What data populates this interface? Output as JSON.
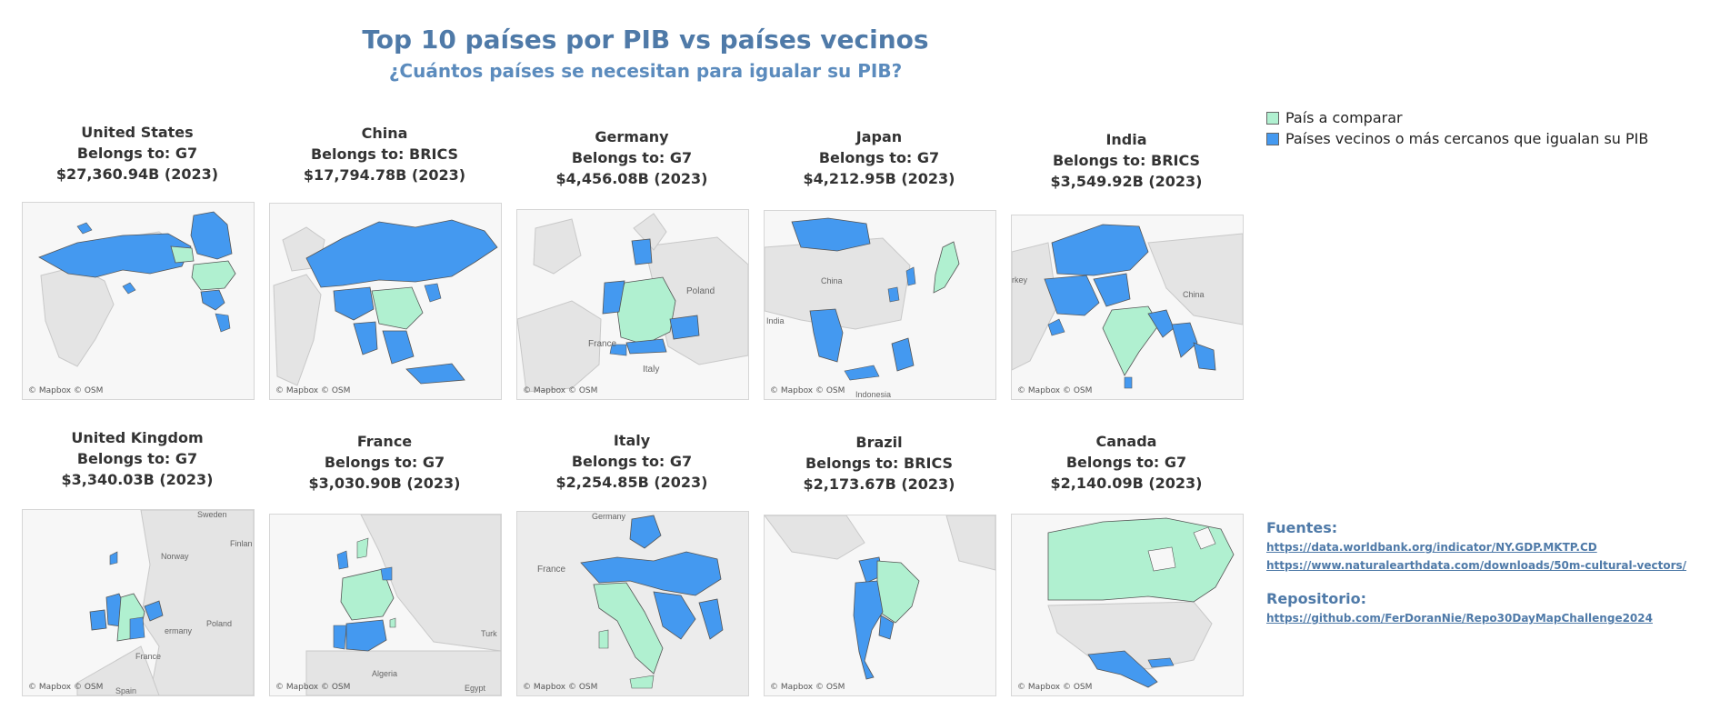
{
  "title": "Top 10 países por PIB vs países vecinos",
  "subtitle": "¿Cuántos países se necesitan para igualar su PIB?",
  "colors": {
    "compare": "#b0f0d0",
    "neighbors": "#4499f0",
    "land": "#e6e6e6",
    "water": "#f7f7f7",
    "border": "#555555"
  },
  "legend": [
    {
      "label": "País a comparar",
      "color": "#b0f0d0"
    },
    {
      "label": "Países vecinos o más cercanos que igualan su PIB",
      "color": "#4499f0"
    }
  ],
  "map_credit": "© Mapbox © OSM",
  "countries": [
    {
      "name": "United States",
      "group": "Belongs to: G7",
      "gdp": "$27,360.94B (2023)",
      "map_labels": []
    },
    {
      "name": "China",
      "group": "Belongs to: BRICS",
      "gdp": "$17,794.78B (2023)",
      "map_labels": []
    },
    {
      "name": "Germany",
      "group": "Belongs to: G7",
      "gdp": "$4,456.08B (2023)",
      "map_labels": [
        "Poland",
        "France",
        "Italy"
      ]
    },
    {
      "name": "Japan",
      "group": "Belongs to: G7",
      "gdp": "$4,212.95B (2023)",
      "map_labels": [
        "China",
        "India",
        "Indonesia"
      ]
    },
    {
      "name": "India",
      "group": "Belongs to: BRICS",
      "gdp": "$3,549.92B (2023)",
      "map_labels": [
        "rkey",
        "China"
      ]
    },
    {
      "name": "United Kingdom",
      "group": "Belongs to: G7",
      "gdp": "$3,340.03B (2023)",
      "map_labels": [
        "Sweden",
        "Norway",
        "Finlan",
        "Poland",
        "ermany",
        "France",
        "Spain"
      ]
    },
    {
      "name": "France",
      "group": "Belongs to: G7",
      "gdp": "$3,030.90B (2023)",
      "map_labels": [
        "Algeria",
        "Turk",
        "Egypt"
      ]
    },
    {
      "name": "Italy",
      "group": "Belongs to: G7",
      "gdp": "$2,254.85B (2023)",
      "map_labels": [
        "Germany",
        "France"
      ]
    },
    {
      "name": "Brazil",
      "group": "Belongs to: BRICS",
      "gdp": "$2,173.67B (2023)",
      "map_labels": []
    },
    {
      "name": "Canada",
      "group": "Belongs to: G7",
      "gdp": "$2,140.09B (2023)",
      "map_labels": []
    }
  ],
  "sources": {
    "label": "Fuentes:",
    "links": [
      "https://data.worldbank.org/indicator/NY.GDP.MKTP.CD",
      "https://www.naturalearthdata.com/downloads/50m-cultural-vectors/"
    ]
  },
  "repo": {
    "label": "Repositorio:",
    "link": "https://github.com/FerDoranNie/Repo30DayMapChallenge2024"
  }
}
